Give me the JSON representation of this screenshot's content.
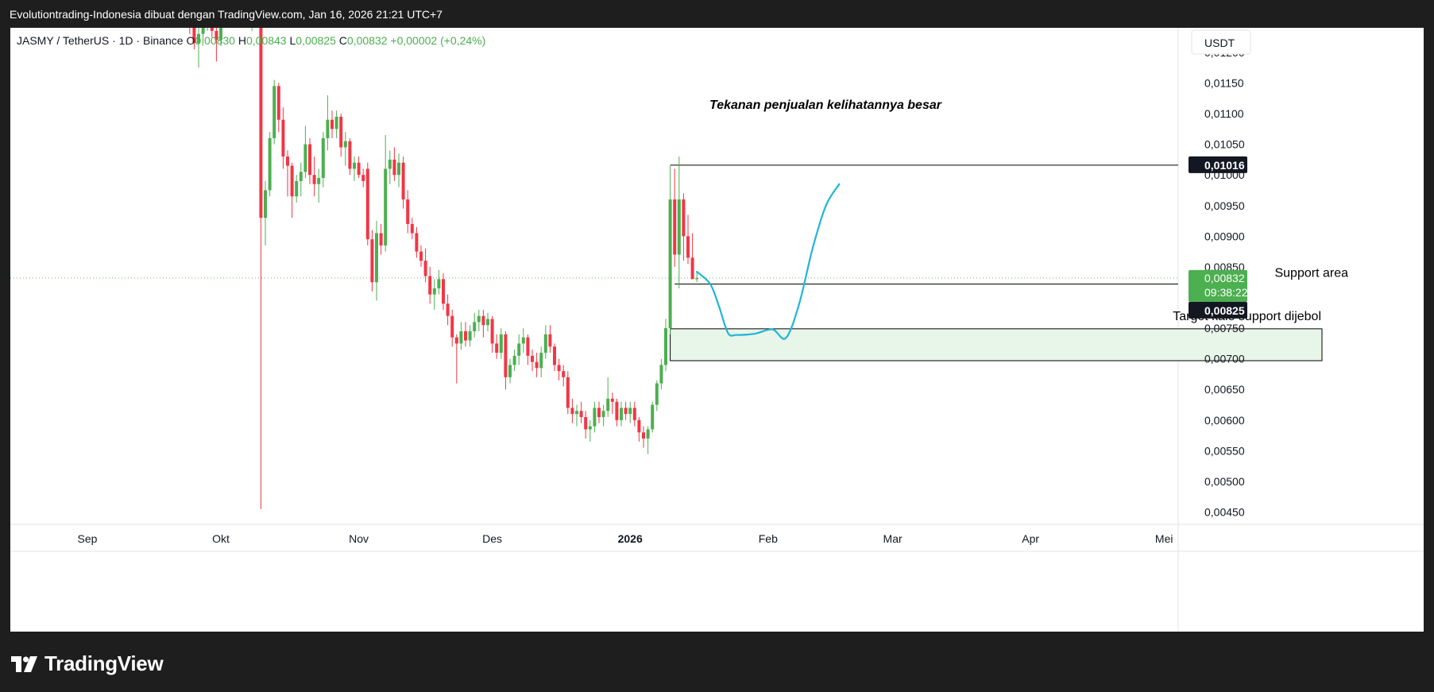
{
  "header": {
    "title": "Evolutiontrading-Indonesia dibuat dengan TradingView.com, Jan 16, 2026 21:21 UTC+7"
  },
  "footer": {
    "brand": "TradingView"
  },
  "chart_data": {
    "type": "candlestick",
    "symbol_line": {
      "symbol": "JASMY / TetherUS · 1D · Binance",
      "open_label": "O",
      "open": "0,00830",
      "high_label": "H",
      "high": "0,00843",
      "low_label": "L",
      "low": "0,00825",
      "close_label": "C",
      "close": "0,00832",
      "change": "+0,00002 (+0,24%)"
    },
    "currency": "USDT",
    "y_ticks": [
      "0,01200",
      "0,01150",
      "0,01100",
      "0,01050",
      "0,01000",
      "0,00950",
      "0,00900",
      "0,00850",
      "0,00800",
      "0,00750",
      "0,00700",
      "0,00650",
      "0,00600",
      "0,00550",
      "0,00500",
      "0,00450"
    ],
    "x_ticks": [
      "Sep",
      "Okt",
      "Nov",
      "Des",
      "2026",
      "Feb",
      "Mar",
      "Apr",
      "Mei"
    ],
    "ylim": [
      0.0043,
      0.0124
    ],
    "price_labels": {
      "resistance": "0,01016",
      "last": "0,00832",
      "countdown": "09:38:22",
      "low": "0,00825"
    },
    "annotations": {
      "title": "Tekanan penjualan kelihatannya besar",
      "support": "Support area",
      "target": "Target kalo support dijebol"
    },
    "levels": {
      "resistance": 0.01016,
      "support": 0.00822,
      "target_top": 0.00749,
      "target_bottom": 0.00697,
      "last": 0.00832
    },
    "colors": {
      "up": "#4caf50",
      "down": "#f23645",
      "projection": "#1fb5d8",
      "target_fill": "#e8f5e9",
      "last_label": "#4caf50"
    },
    "projection_path": [
      [
        "2026-01-16",
        0.00842
      ],
      [
        "2026-01-19",
        0.00822
      ],
      [
        "2026-01-21",
        0.00785
      ],
      [
        "2026-01-23",
        0.00742
      ],
      [
        "2026-01-25",
        0.00739
      ],
      [
        "2026-01-29",
        0.00741
      ],
      [
        "2026-02-02",
        0.00748
      ],
      [
        "2026-02-05",
        0.00734
      ],
      [
        "2026-02-08",
        0.0079
      ],
      [
        "2026-02-11",
        0.0088
      ],
      [
        "2026-02-14",
        0.0095
      ],
      [
        "2026-02-17",
        0.00985
      ]
    ],
    "candles": [
      [
        "2025-09-24",
        0.0129,
        0.0131,
        0.0123,
        0.01255
      ],
      [
        "2025-09-25",
        0.01255,
        0.01265,
        0.01205,
        0.01215
      ],
      [
        "2025-09-26",
        0.01215,
        0.0124,
        0.01175,
        0.0123
      ],
      [
        "2025-09-27",
        0.0123,
        0.0125,
        0.01215,
        0.01245
      ],
      [
        "2025-09-28",
        0.01245,
        0.01275,
        0.01235,
        0.01265
      ],
      [
        "2025-09-29",
        0.01265,
        0.0127,
        0.01225,
        0.01235
      ],
      [
        "2025-09-30",
        0.01235,
        0.0125,
        0.01185,
        0.0122
      ],
      [
        "2025-10-01",
        0.0122,
        0.01265,
        0.0121,
        0.01255
      ],
      [
        "2025-10-02",
        0.01255,
        0.01295,
        0.01245,
        0.01285
      ],
      [
        "2025-10-05",
        0.0128,
        0.013,
        0.0125,
        0.0129
      ],
      [
        "2025-10-06",
        0.0129,
        0.013,
        0.01255,
        0.01265
      ],
      [
        "2025-10-07",
        0.01265,
        0.0128,
        0.01245,
        0.0125
      ],
      [
        "2025-10-08",
        0.0125,
        0.0127,
        0.01235,
        0.01262
      ],
      [
        "2025-10-09",
        0.01262,
        0.0127,
        0.0124,
        0.0125
      ],
      [
        "2025-10-10",
        0.0125,
        0.0126,
        0.00455,
        0.0093
      ],
      [
        "2025-10-11",
        0.0093,
        0.0099,
        0.00885,
        0.00975
      ],
      [
        "2025-10-12",
        0.00975,
        0.0107,
        0.00965,
        0.0106
      ],
      [
        "2025-10-13",
        0.0106,
        0.01155,
        0.0105,
        0.01145
      ],
      [
        "2025-10-14",
        0.01145,
        0.0115,
        0.0107,
        0.0109
      ],
      [
        "2025-10-15",
        0.0109,
        0.0111,
        0.0101,
        0.0103
      ],
      [
        "2025-10-16",
        0.0103,
        0.0104,
        0.00965,
        0.01015
      ],
      [
        "2025-10-17",
        0.01015,
        0.0102,
        0.0093,
        0.00965
      ],
      [
        "2025-10-18",
        0.00965,
        0.01,
        0.00955,
        0.0099
      ],
      [
        "2025-10-19",
        0.0099,
        0.0102,
        0.00965,
        0.01005
      ],
      [
        "2025-10-20",
        0.01005,
        0.0108,
        0.00995,
        0.0105
      ],
      [
        "2025-10-21",
        0.0105,
        0.0106,
        0.00985,
        0.01
      ],
      [
        "2025-10-22",
        0.01,
        0.0103,
        0.00965,
        0.00985
      ],
      [
        "2025-10-23",
        0.00985,
        0.0101,
        0.00955,
        0.00995
      ],
      [
        "2025-10-24",
        0.00995,
        0.0107,
        0.0098,
        0.0106
      ],
      [
        "2025-10-25",
        0.0106,
        0.0113,
        0.0104,
        0.0109
      ],
      [
        "2025-10-26",
        0.0109,
        0.01105,
        0.0106,
        0.01075
      ],
      [
        "2025-10-27",
        0.01075,
        0.01105,
        0.0106,
        0.01095
      ],
      [
        "2025-10-28",
        0.01095,
        0.011,
        0.0103,
        0.01045
      ],
      [
        "2025-10-29",
        0.01045,
        0.0107,
        0.01015,
        0.01055
      ],
      [
        "2025-10-30",
        0.01055,
        0.0106,
        0.01,
        0.0101
      ],
      [
        "2025-10-31",
        0.0101,
        0.0103,
        0.0099,
        0.0102
      ],
      [
        "2025-11-01",
        0.0102,
        0.0103,
        0.00995,
        0.01
      ],
      [
        "2025-11-02",
        0.01,
        0.0101,
        0.0098,
        0.0099
      ],
      [
        "2025-11-03",
        0.0101,
        0.0102,
        0.00885,
        0.00895
      ],
      [
        "2025-11-04",
        0.00895,
        0.0091,
        0.0081,
        0.00825
      ],
      [
        "2025-11-05",
        0.00825,
        0.00925,
        0.00795,
        0.00905
      ],
      [
        "2025-11-06",
        0.00905,
        0.0092,
        0.0087,
        0.00885
      ],
      [
        "2025-11-07",
        0.00885,
        0.01065,
        0.00875,
        0.0101
      ],
      [
        "2025-11-08",
        0.0101,
        0.0104,
        0.00985,
        0.01025
      ],
      [
        "2025-11-09",
        0.01025,
        0.01045,
        0.0099,
        0.01
      ],
      [
        "2025-11-10",
        0.01,
        0.01035,
        0.0098,
        0.0102
      ],
      [
        "2025-11-11",
        0.0102,
        0.0103,
        0.00945,
        0.0096
      ],
      [
        "2025-11-12",
        0.0096,
        0.00975,
        0.00905,
        0.0092
      ],
      [
        "2025-11-13",
        0.0092,
        0.0093,
        0.00895,
        0.00905
      ],
      [
        "2025-11-14",
        0.00905,
        0.00915,
        0.00865,
        0.00875
      ],
      [
        "2025-11-15",
        0.00875,
        0.00885,
        0.0085,
        0.0086
      ],
      [
        "2025-11-16",
        0.0086,
        0.0088,
        0.00825,
        0.00835
      ],
      [
        "2025-11-17",
        0.00835,
        0.0085,
        0.0079,
        0.00805
      ],
      [
        "2025-11-18",
        0.00805,
        0.0083,
        0.0078,
        0.00815
      ],
      [
        "2025-11-19",
        0.00815,
        0.00845,
        0.00805,
        0.0083
      ],
      [
        "2025-11-20",
        0.0083,
        0.0084,
        0.0078,
        0.0079
      ],
      [
        "2025-11-21",
        0.0079,
        0.00805,
        0.00755,
        0.0077
      ],
      [
        "2025-11-22",
        0.0077,
        0.0078,
        0.0072,
        0.00735
      ],
      [
        "2025-11-23",
        0.00735,
        0.0074,
        0.0066,
        0.00725
      ],
      [
        "2025-11-24",
        0.00725,
        0.0076,
        0.00715,
        0.00745
      ],
      [
        "2025-11-25",
        0.00745,
        0.0076,
        0.0072,
        0.0073
      ],
      [
        "2025-11-26",
        0.0073,
        0.00755,
        0.0072,
        0.00745
      ],
      [
        "2025-11-27",
        0.00745,
        0.00775,
        0.00735,
        0.0076
      ],
      [
        "2025-11-28",
        0.0076,
        0.0078,
        0.00745,
        0.0077
      ],
      [
        "2025-11-29",
        0.0077,
        0.0078,
        0.00735,
        0.00755
      ],
      [
        "2025-11-30",
        0.00755,
        0.00775,
        0.00745,
        0.00765
      ],
      [
        "2025-12-01",
        0.00765,
        0.0077,
        0.0071,
        0.00725
      ],
      [
        "2025-12-02",
        0.00725,
        0.0074,
        0.007,
        0.0071
      ],
      [
        "2025-12-03",
        0.0071,
        0.0075,
        0.007,
        0.0074
      ],
      [
        "2025-12-04",
        0.0074,
        0.00745,
        0.0065,
        0.0067
      ],
      [
        "2025-12-05",
        0.0067,
        0.007,
        0.0066,
        0.0069
      ],
      [
        "2025-12-06",
        0.0069,
        0.00715,
        0.0068,
        0.00705
      ],
      [
        "2025-12-07",
        0.00705,
        0.0074,
        0.0069,
        0.00725
      ],
      [
        "2025-12-08",
        0.00725,
        0.0075,
        0.0071,
        0.00735
      ],
      [
        "2025-12-09",
        0.00735,
        0.0074,
        0.0069,
        0.00705
      ],
      [
        "2025-12-10",
        0.00705,
        0.00715,
        0.0068,
        0.00695
      ],
      [
        "2025-12-11",
        0.00695,
        0.0071,
        0.0067,
        0.00685
      ],
      [
        "2025-12-12",
        0.00685,
        0.0072,
        0.0067,
        0.0071
      ],
      [
        "2025-12-13",
        0.0071,
        0.00755,
        0.007,
        0.0074
      ],
      [
        "2025-12-14",
        0.0074,
        0.00755,
        0.0071,
        0.0072
      ],
      [
        "2025-12-15",
        0.0072,
        0.00725,
        0.0068,
        0.0069
      ],
      [
        "2025-12-16",
        0.0069,
        0.007,
        0.00665,
        0.0068
      ],
      [
        "2025-12-17",
        0.0068,
        0.0069,
        0.00655,
        0.0067
      ],
      [
        "2025-12-18",
        0.0067,
        0.0068,
        0.0061,
        0.0062
      ],
      [
        "2025-12-19",
        0.0062,
        0.00635,
        0.00595,
        0.0061
      ],
      [
        "2025-12-20",
        0.0061,
        0.00625,
        0.0059,
        0.00615
      ],
      [
        "2025-12-21",
        0.00615,
        0.0063,
        0.00595,
        0.00605
      ],
      [
        "2025-12-22",
        0.00605,
        0.00615,
        0.0057,
        0.00585
      ],
      [
        "2025-12-23",
        0.00585,
        0.006,
        0.00565,
        0.0059
      ],
      [
        "2025-12-24",
        0.0059,
        0.0063,
        0.0058,
        0.0062
      ],
      [
        "2025-12-25",
        0.0062,
        0.0063,
        0.00595,
        0.00605
      ],
      [
        "2025-12-26",
        0.00605,
        0.00625,
        0.0059,
        0.00615
      ],
      [
        "2025-12-27",
        0.00615,
        0.0067,
        0.00605,
        0.00635
      ],
      [
        "2025-12-28",
        0.00635,
        0.00645,
        0.0061,
        0.0063
      ],
      [
        "2025-12-29",
        0.0063,
        0.00635,
        0.0059,
        0.006
      ],
      [
        "2025-12-30",
        0.006,
        0.0063,
        0.0059,
        0.0062
      ],
      [
        "2025-12-31",
        0.0062,
        0.0063,
        0.006,
        0.0061
      ],
      [
        "2026-01-01",
        0.0061,
        0.0063,
        0.00595,
        0.0062
      ],
      [
        "2026-01-02",
        0.0062,
        0.0063,
        0.0059,
        0.006
      ],
      [
        "2026-01-03",
        0.006,
        0.00605,
        0.00565,
        0.0058
      ],
      [
        "2026-01-04",
        0.0058,
        0.0059,
        0.00555,
        0.0057
      ],
      [
        "2026-01-05",
        0.0057,
        0.0059,
        0.00545,
        0.00585
      ],
      [
        "2026-01-06",
        0.00585,
        0.0063,
        0.0058,
        0.00625
      ],
      [
        "2026-01-07",
        0.00625,
        0.00665,
        0.00615,
        0.0066
      ],
      [
        "2026-01-08",
        0.0066,
        0.007,
        0.0065,
        0.0069
      ],
      [
        "2026-01-09",
        0.0069,
        0.00765,
        0.0068,
        0.0075
      ],
      [
        "2026-01-10",
        0.0075,
        0.01015,
        0.0074,
        0.0096
      ],
      [
        "2026-01-11",
        0.0096,
        0.0101,
        0.0085,
        0.0087
      ],
      [
        "2026-01-12",
        0.0087,
        0.0103,
        0.00815,
        0.0096
      ],
      [
        "2026-01-13",
        0.0096,
        0.0097,
        0.0086,
        0.009
      ],
      [
        "2026-01-14",
        0.009,
        0.00935,
        0.00855,
        0.00865
      ],
      [
        "2026-01-15",
        0.00865,
        0.00905,
        0.0083,
        0.0083
      ],
      [
        "2026-01-16",
        0.0083,
        0.00843,
        0.00825,
        0.00832
      ]
    ]
  }
}
